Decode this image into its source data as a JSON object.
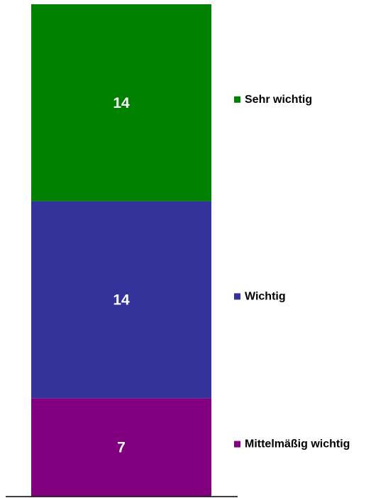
{
  "chart_data": {
    "type": "bar",
    "stacked": true,
    "title": "",
    "xlabel": "",
    "ylabel": "",
    "categories": [
      ""
    ],
    "ylim": [
      0,
      35
    ],
    "grid": false,
    "legend_placement": "right",
    "series": [
      {
        "name": "Mittelmäßig wichtig",
        "values": [
          7
        ],
        "color": "#800080"
      },
      {
        "name": "Wichtig",
        "values": [
          14
        ],
        "color": "#333399"
      },
      {
        "name": "Sehr wichtig",
        "values": [
          14
        ],
        "color": "#008000"
      }
    ]
  }
}
